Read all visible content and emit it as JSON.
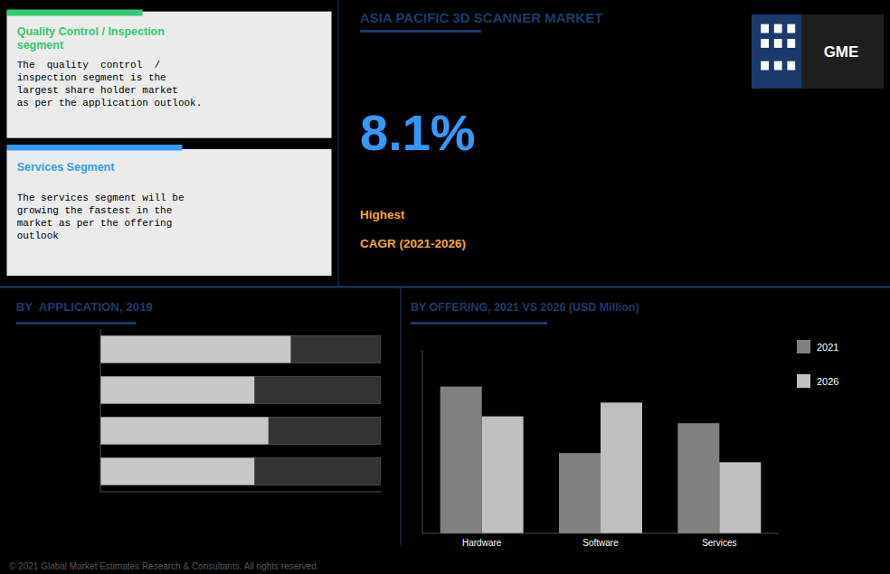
{
  "chart_data": [
    {
      "type": "text",
      "title": "ASIA PACIFIC 3D SCANNER MARKET",
      "color": "#1a3a6b",
      "annotations": [
        {
          "text": "Quality Control / Inspection\nsegment",
          "color": "#2ecc71"
        },
        {
          "text": "The  quality  control  /\ninspection segment is the\nlargest share holder market\nas per the application outlook.",
          "color": "#000000"
        },
        {
          "text": "Services Segment",
          "color": "#3399ff"
        },
        {
          "text": "The services segment will be\ngrowing the fastest in the\nmarket as per the offering\noutlook",
          "color": "#000000"
        },
        {
          "text": "8.1%",
          "color": "#3399ff"
        },
        {
          "text": "Highest",
          "color": "#f5a623"
        },
        {
          "text": "CAGR (2021-2026)",
          "color": "#f5a623"
        },
        {
          "text": "GME",
          "color": "#ffffff"
        },
        {
          "text": "© 2021 Global Market Estimates Research & Consultants. All rights reserved.",
          "color": "#555555"
        }
      ]
    },
    {
      "type": "bar",
      "title": "BY OFFERING, 2021 VS 2026 (USD Million)",
      "categories": [
        "Hardware",
        "Software",
        "Services"
      ],
      "series": [
        {
          "name": "2021",
          "color": "#808080",
          "values": [
            320,
            175,
            240
          ]
        },
        {
          "name": "2026",
          "color": "#c0c0c0",
          "values": [
            255,
            285,
            155
          ]
        }
      ],
      "ylim": [
        0,
        400
      ],
      "legend": "right",
      "tick_labels": "x",
      "grid": false
    },
    {
      "type": "bar",
      "title": "BY  APPLICATION, 2019",
      "orientation": "horizontal",
      "stacked": true,
      "categories": [
        null,
        null,
        null,
        null
      ],
      "series": [
        {
          "color": "#c8c8c8",
          "values": [
            0.68,
            0.55,
            0.6,
            0.55
          ]
        },
        {
          "color": "#333333",
          "values": [
            0.32,
            0.45,
            0.4,
            0.45
          ]
        }
      ],
      "xlim": [
        0,
        1
      ],
      "tick_labels": false,
      "grid": false
    }
  ]
}
